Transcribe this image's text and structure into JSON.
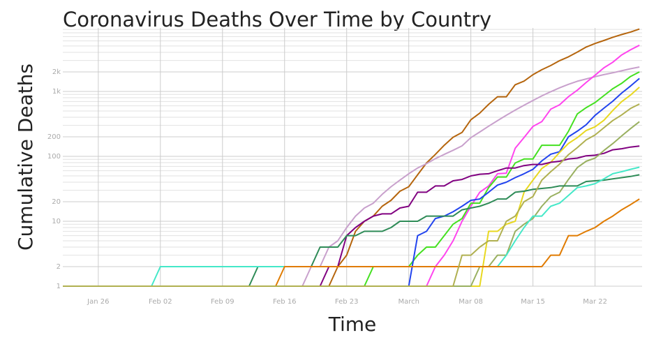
{
  "chart_data": {
    "type": "line",
    "title": "Coronavirus Deaths Over Time by Country",
    "x_label": "Time",
    "y_label": "Cumulative Deaths",
    "log_y": true,
    "grid": true,
    "ylim": [
      1,
      9500
    ],
    "yticks": [
      1,
      2,
      10,
      20,
      100,
      200,
      {
        "value": 1000,
        "label": "1k"
      },
      {
        "value": 2000,
        "label": "2k"
      }
    ],
    "xticks": [
      "Jan 26",
      "Feb 02",
      "Feb 09",
      "Feb 16",
      "Feb 23",
      {
        "value": "Mar 01",
        "label": "March"
      },
      "Mar 08",
      "Mar 15",
      "Mar 22"
    ],
    "x": [
      "Jan 22",
      "Jan 23",
      "Jan 24",
      "Jan 25",
      "Jan 26",
      "Jan 27",
      "Jan 28",
      "Jan 29",
      "Jan 30",
      "Jan 31",
      "Feb 01",
      "Feb 02",
      "Feb 03",
      "Feb 04",
      "Feb 05",
      "Feb 06",
      "Feb 07",
      "Feb 08",
      "Feb 09",
      "Feb 10",
      "Feb 11",
      "Feb 12",
      "Feb 13",
      "Feb 14",
      "Feb 15",
      "Feb 16",
      "Feb 17",
      "Feb 18",
      "Feb 19",
      "Feb 20",
      "Feb 21",
      "Feb 22",
      "Feb 23",
      "Feb 24",
      "Feb 25",
      "Feb 26",
      "Feb 27",
      "Feb 28",
      "Feb 29",
      "Mar 01",
      "Mar 02",
      "Mar 03",
      "Mar 04",
      "Mar 05",
      "Mar 06",
      "Mar 07",
      "Mar 08",
      "Mar 09",
      "Mar 10",
      "Mar 11",
      "Mar 12",
      "Mar 13",
      "Mar 14",
      "Mar 15",
      "Mar 16",
      "Mar 17",
      "Mar 18",
      "Mar 19",
      "Mar 20",
      "Mar 21",
      "Mar 22",
      "Mar 23",
      "Mar 24",
      "Mar 25",
      "Mar 26",
      "Mar 27"
    ],
    "series": [
      {
        "color": "#b5650d",
        "values": [
          1,
          1,
          1,
          1,
          1,
          1,
          1,
          1,
          1,
          1,
          1,
          1,
          1,
          1,
          1,
          1,
          1,
          1,
          1,
          1,
          1,
          1,
          1,
          1,
          1,
          1,
          1,
          1,
          1,
          1,
          1,
          2,
          3,
          7,
          10,
          12,
          17,
          21,
          29,
          34,
          52,
          79,
          107,
          148,
          197,
          233,
          366,
          463,
          631,
          827,
          827,
          1266,
          1441,
          1809,
          2158,
          2503,
          2978,
          3405,
          4032,
          4825,
          5476,
          6077,
          6820,
          7503,
          8215,
          9134
        ]
      },
      {
        "color": "#c8a0cc",
        "values": [
          1,
          1,
          1,
          1,
          1,
          1,
          1,
          1,
          1,
          1,
          1,
          1,
          1,
          1,
          1,
          1,
          1,
          1,
          1,
          1,
          1,
          1,
          1,
          1,
          1,
          1,
          1,
          1,
          2,
          2,
          4,
          5,
          8,
          12,
          16,
          19,
          26,
          34,
          43,
          54,
          66,
          77,
          92,
          107,
          124,
          145,
          194,
          237,
          291,
          354,
          429,
          514,
          611,
          724,
          853,
          988,
          1135,
          1284,
          1433,
          1556,
          1685,
          1812,
          1934,
          2077,
          2234,
          2378
        ]
      },
      {
        "color": "#ff44ee",
        "values": [
          1,
          1,
          1,
          1,
          1,
          1,
          1,
          1,
          1,
          1,
          1,
          1,
          1,
          1,
          1,
          1,
          1,
          1,
          1,
          1,
          1,
          1,
          1,
          1,
          1,
          1,
          1,
          1,
          1,
          1,
          1,
          1,
          1,
          1,
          1,
          1,
          1,
          1,
          1,
          1,
          1,
          1,
          2,
          3,
          5,
          10,
          17,
          28,
          35,
          54,
          55,
          133,
          195,
          289,
          342,
          533,
          623,
          830,
          1043,
          1375,
          1772,
          2311,
          2808,
          3647,
          4365,
          5138
        ]
      },
      {
        "color": "#44e020",
        "values": [
          1,
          1,
          1,
          1,
          1,
          1,
          1,
          1,
          1,
          1,
          1,
          1,
          1,
          1,
          1,
          1,
          1,
          1,
          1,
          1,
          1,
          1,
          1,
          1,
          1,
          1,
          1,
          1,
          1,
          1,
          1,
          1,
          1,
          1,
          1,
          2,
          2,
          2,
          2,
          2,
          3,
          4,
          4,
          6,
          9,
          11,
          19,
          19,
          33,
          48,
          48,
          79,
          91,
          91,
          148,
          148,
          148,
          243,
          450,
          562,
          674,
          860,
          1100,
          1331,
          1696,
          1995
        ]
      },
      {
        "color": "#2244ee",
        "values": [
          1,
          1,
          1,
          1,
          1,
          1,
          1,
          1,
          1,
          1,
          1,
          1,
          1,
          1,
          1,
          1,
          1,
          1,
          1,
          1,
          1,
          1,
          1,
          1,
          1,
          1,
          1,
          1,
          1,
          1,
          1,
          1,
          1,
          1,
          1,
          1,
          1,
          1,
          1,
          1,
          6,
          7,
          11,
          12,
          14,
          17,
          21,
          22,
          28,
          36,
          40,
          47,
          54,
          63,
          85,
          108,
          118,
          200,
          244,
          307,
          427,
          552,
          706,
          942,
          1209,
          1581
        ]
      },
      {
        "color": "#e8d820",
        "values": [
          1,
          1,
          1,
          1,
          1,
          1,
          1,
          1,
          1,
          1,
          1,
          1,
          1,
          1,
          1,
          1,
          1,
          1,
          1,
          1,
          1,
          1,
          1,
          1,
          1,
          1,
          1,
          1,
          1,
          1,
          1,
          1,
          1,
          1,
          1,
          1,
          1,
          1,
          1,
          1,
          1,
          1,
          1,
          1,
          1,
          1,
          1,
          1,
          7,
          7,
          9,
          10,
          28,
          43,
          65,
          81,
          115,
          158,
          194,
          250,
          285,
          359,
          508,
          694,
          877,
          1161
        ]
      },
      {
        "color": "#800080",
        "values": [
          1,
          1,
          1,
          1,
          1,
          1,
          1,
          1,
          1,
          1,
          1,
          1,
          1,
          1,
          1,
          1,
          1,
          1,
          1,
          1,
          1,
          1,
          1,
          1,
          1,
          1,
          1,
          1,
          1,
          1,
          2,
          2,
          6,
          8,
          10,
          12,
          13,
          13,
          16,
          17,
          28,
          28,
          35,
          35,
          42,
          44,
          50,
          53,
          54,
          60,
          66,
          66,
          72,
          75,
          75,
          81,
          84,
          91,
          94,
          102,
          104,
          111,
          126,
          131,
          139,
          144
        ]
      },
      {
        "color": "#99b060",
        "values": [
          1,
          1,
          1,
          1,
          1,
          1,
          1,
          1,
          1,
          1,
          1,
          1,
          1,
          1,
          1,
          1,
          1,
          1,
          1,
          1,
          1,
          1,
          1,
          1,
          1,
          1,
          1,
          1,
          1,
          1,
          1,
          1,
          1,
          1,
          1,
          1,
          1,
          1,
          1,
          1,
          1,
          1,
          1,
          1,
          1,
          1,
          1,
          2,
          2,
          3,
          3,
          7,
          9,
          11,
          17,
          24,
          28,
          44,
          67,
          84,
          94,
          123,
          157,
          206,
          267,
          342
        ]
      },
      {
        "color": "#2e8b57",
        "values": [
          1,
          1,
          1,
          1,
          1,
          1,
          1,
          1,
          1,
          1,
          1,
          1,
          1,
          1,
          1,
          1,
          1,
          1,
          1,
          1,
          1,
          1,
          2,
          2,
          2,
          2,
          2,
          2,
          2,
          4,
          4,
          4,
          6,
          6,
          7,
          7,
          7,
          8,
          10,
          10,
          10,
          12,
          12,
          12,
          12,
          15,
          16,
          17,
          19,
          22,
          22,
          28,
          29,
          31,
          32,
          33,
          35,
          35,
          35,
          41,
          42,
          43,
          45,
          47,
          49,
          52
        ]
      },
      {
        "color": "#44e8c8",
        "values": [
          1,
          1,
          1,
          1,
          1,
          1,
          1,
          1,
          1,
          1,
          1,
          2,
          2,
          2,
          2,
          2,
          2,
          2,
          2,
          2,
          2,
          2,
          2,
          2,
          2,
          2,
          2,
          2,
          2,
          2,
          2,
          2,
          2,
          2,
          2,
          2,
          2,
          2,
          2,
          2,
          2,
          2,
          2,
          2,
          2,
          2,
          2,
          2,
          2,
          2,
          3,
          5,
          8,
          12,
          12,
          17,
          19,
          25,
          33,
          35,
          38,
          45,
          54,
          58,
          63,
          68
        ]
      },
      {
        "color": "#e07b00",
        "values": [
          1,
          1,
          1,
          1,
          1,
          1,
          1,
          1,
          1,
          1,
          1,
          1,
          1,
          1,
          1,
          1,
          1,
          1,
          1,
          1,
          1,
          1,
          1,
          1,
          1,
          2,
          2,
          2,
          2,
          2,
          2,
          2,
          2,
          2,
          2,
          2,
          2,
          2,
          2,
          2,
          2,
          2,
          2,
          2,
          2,
          2,
          2,
          2,
          2,
          2,
          2,
          2,
          2,
          2,
          2,
          3,
          3,
          6,
          6,
          7,
          8,
          10,
          12,
          15,
          18,
          22
        ]
      },
      {
        "color": "#b0b050",
        "values": [
          1,
          1,
          1,
          1,
          1,
          1,
          1,
          1,
          1,
          1,
          1,
          1,
          1,
          1,
          1,
          1,
          1,
          1,
          1,
          1,
          1,
          1,
          1,
          1,
          1,
          1,
          1,
          1,
          1,
          1,
          1,
          1,
          1,
          1,
          1,
          1,
          1,
          1,
          1,
          1,
          1,
          1,
          1,
          1,
          1,
          3,
          3,
          4,
          5,
          5,
          10,
          12,
          20,
          24,
          43,
          58,
          76,
          106,
          136,
          179,
          213,
          276,
          356,
          434,
          546,
          639
        ]
      }
    ]
  }
}
